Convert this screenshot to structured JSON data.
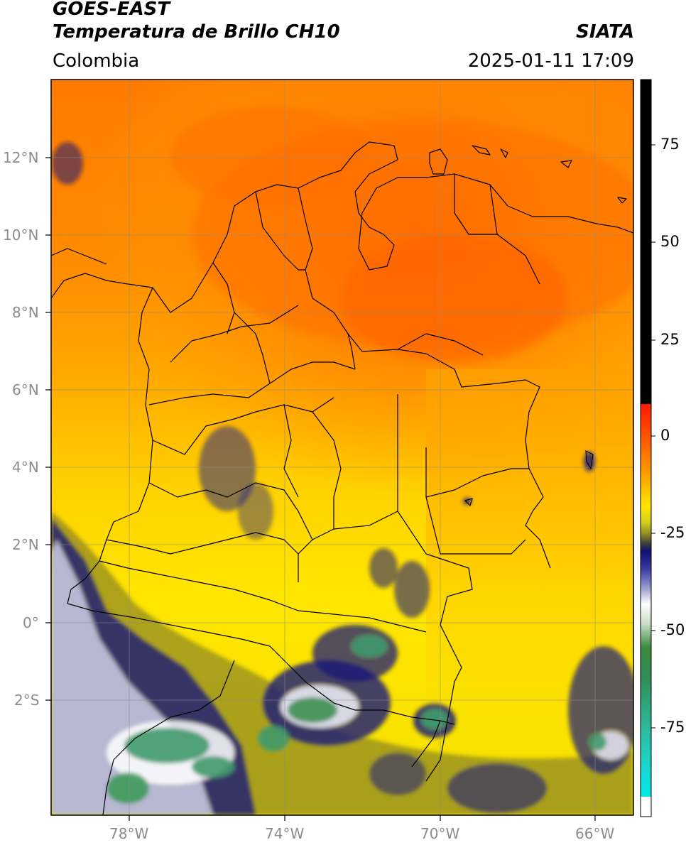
{
  "header": {
    "title_line1": "GOES-EAST",
    "title_line2": "Temperatura de Brillo CH10",
    "region": "Colombia",
    "agency": "SIATA",
    "timestamp": "2025-01-11 17:09"
  },
  "map": {
    "lat_labels": [
      "12°N",
      "10°N",
      "8°N",
      "6°N",
      "4°N",
      "2°N",
      "0°",
      "2°S"
    ],
    "lon_labels": [
      "78°W",
      "74°W",
      "70°W",
      "66°W"
    ],
    "gridlines": true
  },
  "colorbar": {
    "ticks": [
      "75",
      "50",
      "25",
      "0",
      "-25",
      "-50",
      "-75"
    ],
    "colors": {
      "warm_black": "#000000",
      "red": "#ff1a00",
      "orange": "#ff8a00",
      "yellow": "#ffe600",
      "olive": "#8f8f1e",
      "navy": "#101070",
      "white": "#ffffff",
      "green": "#2f8f3a",
      "teal": "#2fb89a",
      "cyan": "#00e0e0"
    }
  }
}
